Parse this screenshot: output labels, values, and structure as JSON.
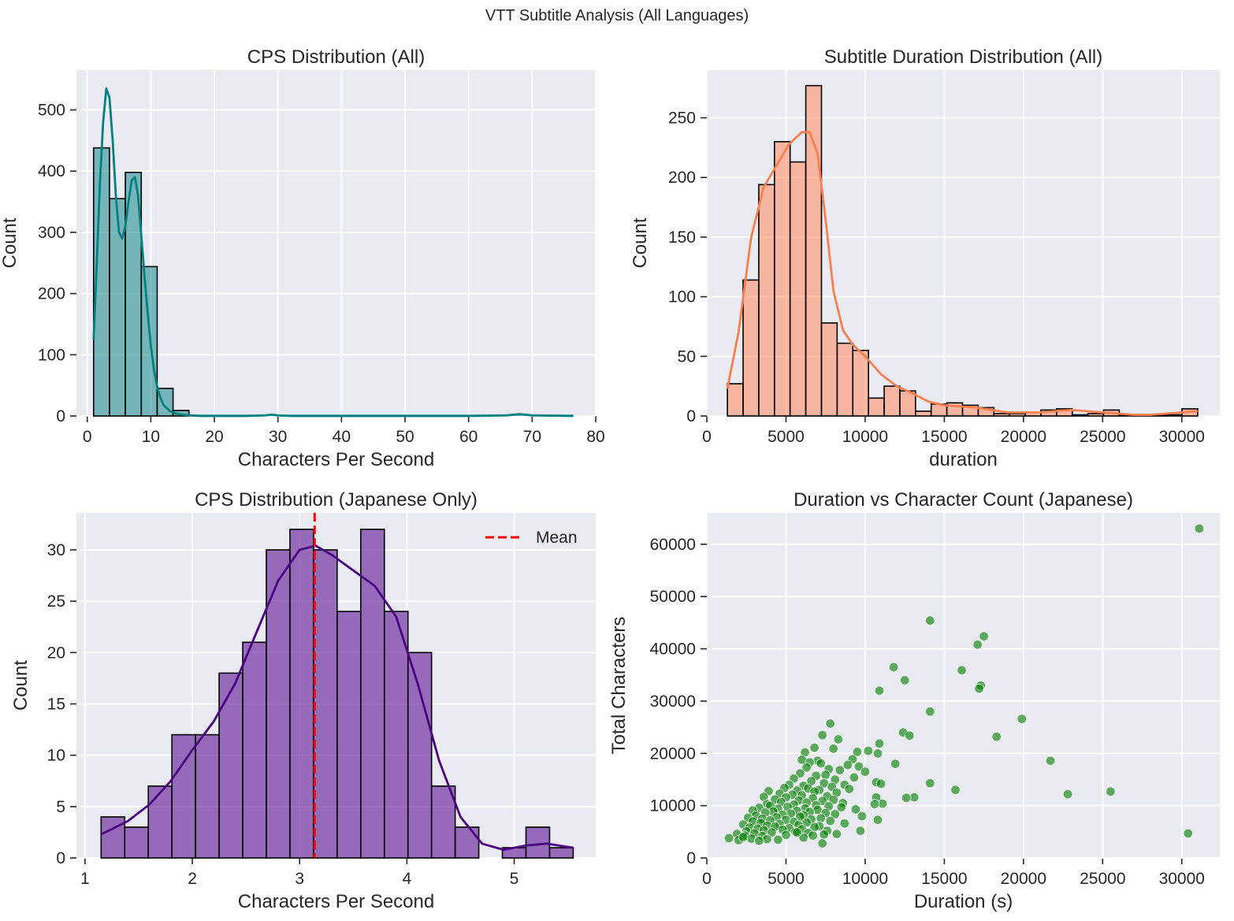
{
  "suptitle": "VTT Subtitle Analysis (All Languages)",
  "colors": {
    "panel_bg": "#eaeaf2",
    "grid": "#ffffff",
    "teal": "#008080",
    "coral": "#ff7f50",
    "purple": "#4b0082",
    "green": "#008000",
    "mean_line": "#ff0000"
  },
  "chart_data": [
    {
      "id": "cps_all",
      "type": "bar",
      "title": "CPS Distribution (All)",
      "xlabel": "Characters Per Second",
      "ylabel": "Count",
      "xlim": [
        -1.7,
        80
      ],
      "ylim": [
        0,
        565
      ],
      "xticks": [
        0,
        10,
        20,
        30,
        40,
        50,
        60,
        70,
        80
      ],
      "yticks": [
        0,
        100,
        200,
        300,
        400,
        500
      ],
      "bin_width": 2.5,
      "bins_start": [
        1.0,
        3.5,
        6.0,
        8.5,
        11.0,
        13.5
      ],
      "counts": [
        438,
        355,
        398,
        244,
        45,
        9
      ],
      "tail_range": [
        16.0,
        76.5
      ],
      "kde": {
        "x": [
          1.0,
          1.5,
          2.0,
          2.5,
          3.0,
          3.5,
          4.0,
          4.5,
          5.0,
          5.5,
          6.0,
          6.5,
          7.0,
          7.5,
          8.0,
          8.5,
          9.0,
          9.5,
          10.0,
          10.5,
          11.0,
          11.5,
          12.0,
          13.0,
          14.0,
          15.0,
          16.0,
          18.0,
          25.0,
          28.0,
          29.0,
          30.0,
          32.0,
          40.0,
          50.0,
          60.0,
          66.0,
          68.0,
          70.0,
          76.5
        ],
        "y": [
          125,
          250,
          380,
          480,
          535,
          520,
          450,
          360,
          300,
          290,
          310,
          350,
          385,
          390,
          360,
          295,
          230,
          170,
          115,
          75,
          48,
          30,
          18,
          8,
          4,
          2,
          1,
          0,
          0,
          1,
          2,
          1,
          0,
          0,
          0,
          0,
          1,
          3,
          1,
          0
        ]
      }
    },
    {
      "id": "duration_all",
      "type": "bar",
      "title": "Subtitle Duration Distribution (All)",
      "xlabel": "duration",
      "ylabel": "Count",
      "xlim": [
        0,
        32400
      ],
      "ylim": [
        0,
        290
      ],
      "xticks": [
        0,
        5000,
        10000,
        15000,
        20000,
        25000,
        30000
      ],
      "yticks": [
        0,
        50,
        100,
        150,
        200,
        250
      ],
      "bin_width": 990,
      "bins_start_first": 1300,
      "counts": [
        27,
        114,
        194,
        230,
        213,
        277,
        78,
        61,
        55,
        15,
        25,
        21,
        4,
        10,
        11,
        9,
        7,
        2,
        2,
        3,
        5,
        6,
        1,
        2,
        5,
        1,
        1,
        1,
        1,
        6
      ],
      "kde": {
        "x": [
          1300,
          2000,
          2800,
          3600,
          4400,
          5200,
          6000,
          6500,
          7000,
          7500,
          8000,
          8600,
          9200,
          10000,
          11000,
          12000,
          13000,
          14000,
          15000,
          16000,
          17000,
          18000,
          19000,
          20000,
          21000,
          22000,
          23000,
          24000,
          25000,
          26000,
          27000,
          28000,
          29000,
          30000,
          31000
        ],
        "y": [
          23,
          70,
          150,
          192,
          210,
          228,
          238,
          238,
          220,
          165,
          105,
          72,
          60,
          50,
          35,
          25,
          19,
          12,
          9,
          8,
          7,
          5,
          3,
          3,
          3,
          4,
          5,
          4,
          3,
          2,
          1,
          1,
          2,
          3,
          4
        ]
      }
    },
    {
      "id": "cps_japanese",
      "type": "bar",
      "title": "CPS Distribution (Japanese Only)",
      "xlabel": "Characters Per Second",
      "ylabel": "Count",
      "xlim": [
        0.92,
        5.76
      ],
      "ylim": [
        0,
        33.6
      ],
      "xticks": [
        1,
        2,
        3,
        4,
        5
      ],
      "yticks": [
        0,
        5,
        10,
        15,
        20,
        25,
        30
      ],
      "bin_width": 0.22,
      "bins_start_first": 1.15,
      "counts": [
        4,
        3,
        7,
        12,
        12,
        18,
        21,
        30,
        32,
        30,
        24,
        32,
        24,
        20,
        7,
        3,
        0,
        1,
        3,
        1
      ],
      "mean": 3.14,
      "legend": [
        {
          "label": "Mean",
          "style": "dashed",
          "color": "#ff0000"
        }
      ],
      "legend_position": "upper-right",
      "kde": {
        "x": [
          1.15,
          1.4,
          1.6,
          1.8,
          2.0,
          2.2,
          2.4,
          2.6,
          2.8,
          3.0,
          3.15,
          3.3,
          3.5,
          3.7,
          3.9,
          4.1,
          4.3,
          4.5,
          4.7,
          4.9,
          5.1,
          5.3,
          5.55
        ],
        "y": [
          2.3,
          3.6,
          5.2,
          7.5,
          10.5,
          13.3,
          17.0,
          22.0,
          27.0,
          30.0,
          30.4,
          29.5,
          28.0,
          26.5,
          23.5,
          17.0,
          9.5,
          4.0,
          1.4,
          0.8,
          1.2,
          1.4,
          1.0
        ]
      }
    },
    {
      "id": "scatter_japanese",
      "type": "scatter",
      "title": "Duration vs Character Count (Japanese)",
      "xlabel": "Duration (s)",
      "ylabel": "Total Characters",
      "xlim": [
        0,
        32400
      ],
      "ylim": [
        0,
        66000
      ],
      "xticks": [
        0,
        5000,
        10000,
        15000,
        20000,
        25000,
        30000
      ],
      "yticks": [
        0,
        10000,
        20000,
        30000,
        40000,
        50000,
        60000
      ],
      "points": [
        [
          31100,
          63000
        ],
        [
          14100,
          45400
        ],
        [
          17500,
          42400
        ],
        [
          17100,
          40800
        ],
        [
          11800,
          36500
        ],
        [
          16100,
          35900
        ],
        [
          12500,
          34000
        ],
        [
          17300,
          33000
        ],
        [
          17200,
          32400
        ],
        [
          10900,
          32000
        ],
        [
          14100,
          28000
        ],
        [
          19900,
          26600
        ],
        [
          7800,
          25700
        ],
        [
          12400,
          24000
        ],
        [
          7300,
          23500
        ],
        [
          12800,
          23400
        ],
        [
          18300,
          23200
        ],
        [
          8300,
          22700
        ],
        [
          10900,
          21900
        ],
        [
          6800,
          21100
        ],
        [
          8000,
          20900
        ],
        [
          10200,
          20500
        ],
        [
          9500,
          20300
        ],
        [
          10800,
          20000
        ],
        [
          6200,
          20200
        ],
        [
          9200,
          18900
        ],
        [
          21700,
          18600
        ],
        [
          6000,
          18800
        ],
        [
          7000,
          18600
        ],
        [
          6500,
          18300
        ],
        [
          11900,
          18000
        ],
        [
          7200,
          18100
        ],
        [
          8900,
          17800
        ],
        [
          9600,
          17500
        ],
        [
          6300,
          17300
        ],
        [
          7700,
          17000
        ],
        [
          8400,
          16800
        ],
        [
          10000,
          16500
        ],
        [
          5900,
          16200
        ],
        [
          7500,
          15900
        ],
        [
          6900,
          15700
        ],
        [
          9300,
          15400
        ],
        [
          5500,
          15200
        ],
        [
          8100,
          15000
        ],
        [
          10700,
          14500
        ],
        [
          6600,
          14700
        ],
        [
          7400,
          14300
        ],
        [
          11000,
          14200
        ],
        [
          14100,
          14300
        ],
        [
          5200,
          14000
        ],
        [
          8700,
          14000
        ],
        [
          6100,
          13800
        ],
        [
          7900,
          13600
        ],
        [
          4900,
          13400
        ],
        [
          6400,
          13300
        ],
        [
          9000,
          13200
        ],
        [
          7100,
          13000
        ],
        [
          15700,
          13000
        ],
        [
          5700,
          12900
        ],
        [
          3900,
          12800
        ],
        [
          6800,
          12700
        ],
        [
          25500,
          12700
        ],
        [
          8200,
          12500
        ],
        [
          4600,
          12300
        ],
        [
          22800,
          12200
        ],
        [
          5400,
          12100
        ],
        [
          6000,
          12000
        ],
        [
          7600,
          11800
        ],
        [
          3600,
          11700
        ],
        [
          5000,
          11600
        ],
        [
          10700,
          11600
        ],
        [
          13100,
          11600
        ],
        [
          12600,
          11500
        ],
        [
          6700,
          11400
        ],
        [
          4300,
          11200
        ],
        [
          8000,
          11100
        ],
        [
          5800,
          11000
        ],
        [
          7300,
          10900
        ],
        [
          4700,
          10700
        ],
        [
          6300,
          10600
        ],
        [
          8600,
          10500
        ],
        [
          11100,
          10400
        ],
        [
          3800,
          10300
        ],
        [
          10600,
          10300
        ],
        [
          5500,
          10200
        ],
        [
          6900,
          10100
        ],
        [
          4000,
          10000
        ],
        [
          7700,
          9900
        ],
        [
          5100,
          9800
        ],
        [
          8500,
          9700
        ],
        [
          3300,
          9600
        ],
        [
          6200,
          9500
        ],
        [
          4500,
          9400
        ],
        [
          9400,
          9300
        ],
        [
          7000,
          9200
        ],
        [
          2900,
          9100
        ],
        [
          5700,
          9000
        ],
        [
          4200,
          8900
        ],
        [
          6500,
          8800
        ],
        [
          3700,
          8700
        ],
        [
          7500,
          8600
        ],
        [
          5300,
          8500
        ],
        [
          8100,
          8400
        ],
        [
          4800,
          8300
        ],
        [
          6100,
          8200
        ],
        [
          3100,
          8100
        ],
        [
          9800,
          8000
        ],
        [
          5900,
          7900
        ],
        [
          4400,
          7800
        ],
        [
          2600,
          7700
        ],
        [
          7200,
          7600
        ],
        [
          3500,
          7500
        ],
        [
          6600,
          7400
        ],
        [
          5000,
          7300
        ],
        [
          10800,
          7300
        ],
        [
          4000,
          7200
        ],
        [
          7800,
          7100
        ],
        [
          2900,
          7000
        ],
        [
          5500,
          6900
        ],
        [
          6300,
          6800
        ],
        [
          3400,
          6700
        ],
        [
          8700,
          6600
        ],
        [
          4600,
          6500
        ],
        [
          2300,
          6400
        ],
        [
          5800,
          6300
        ],
        [
          3800,
          6200
        ],
        [
          7100,
          6100
        ],
        [
          4300,
          6000
        ],
        [
          6800,
          5900
        ],
        [
          2700,
          5800
        ],
        [
          5200,
          5700
        ],
        [
          3200,
          5600
        ],
        [
          6000,
          5500
        ],
        [
          4800,
          5400
        ],
        [
          3600,
          5300
        ],
        [
          7600,
          5200
        ],
        [
          2500,
          5100
        ],
        [
          5600,
          5000
        ],
        [
          4100,
          4900
        ],
        [
          9700,
          5200
        ],
        [
          6400,
          4800
        ],
        [
          3000,
          4700
        ],
        [
          30400,
          4700
        ],
        [
          8200,
          4600
        ],
        [
          1900,
          4600
        ],
        [
          7400,
          4500
        ],
        [
          5000,
          4400
        ],
        [
          2400,
          4300
        ],
        [
          3500,
          4200
        ],
        [
          6700,
          4300
        ],
        [
          2000,
          3400
        ],
        [
          3800,
          3600
        ],
        [
          1400,
          3800
        ],
        [
          2800,
          3700
        ],
        [
          4500,
          3500
        ],
        [
          3300,
          3300
        ],
        [
          6100,
          3900
        ],
        [
          7300,
          2800
        ],
        [
          2300,
          4000
        ],
        [
          5700,
          4900
        ]
      ]
    }
  ]
}
